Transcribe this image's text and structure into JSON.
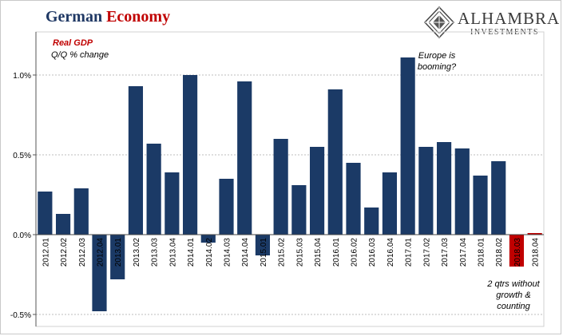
{
  "header": {
    "title_part1": "German",
    "title_part2": "Economy"
  },
  "logo": {
    "name": "ALHAMBRA",
    "sub": "INVESTMENTS"
  },
  "annotations": {
    "series_label": "Real GDP",
    "series_unit": "Q/Q % change",
    "europe_line1": "Europe is",
    "europe_line2": "booming?",
    "qtrs_line1": "2 qtrs without",
    "qtrs_line2": "growth &",
    "qtrs_line3": "counting"
  },
  "colors": {
    "bar": "#1b3a66",
    "highlight": "#c00000",
    "grid": "#bdbdbd"
  },
  "chart_data": {
    "type": "bar",
    "title": "German Economy",
    "xlabel": "",
    "ylabel": "",
    "ylim": [
      -0.5,
      1.2
    ],
    "yticks": [
      {
        "value": -0.5,
        "label": "-0.5%"
      },
      {
        "value": 0.0,
        "label": "0.0%"
      },
      {
        "value": 0.5,
        "label": "0.5%"
      },
      {
        "value": 1.0,
        "label": "1.0%"
      }
    ],
    "grid": true,
    "categories": [
      "2012.01",
      "2012.02",
      "2012.03",
      "2012.04",
      "2013.01",
      "2013.02",
      "2013.03",
      "2013.04",
      "2014.01",
      "2014.02",
      "2014.03",
      "2014.04",
      "2015.01",
      "2015.02",
      "2015.03",
      "2015.04",
      "2016.01",
      "2016.02",
      "2016.03",
      "2016.04",
      "2017.01",
      "2017.02",
      "2017.03",
      "2017.04",
      "2018.01",
      "2018.02",
      "2018.03",
      "2018.04"
    ],
    "series": [
      {
        "values": [
          0.27,
          0.13,
          0.29,
          -0.48,
          -0.28,
          0.93,
          0.57,
          0.39,
          1.0,
          -0.05,
          0.35,
          0.96,
          -0.13,
          0.6,
          0.31,
          0.55,
          0.91,
          0.45,
          0.17,
          0.39,
          1.11,
          0.55,
          0.58,
          0.54,
          0.37,
          0.46,
          -0.2,
          0.01
        ]
      }
    ],
    "highlight_categories": [
      "2018.03",
      "2018.04"
    ]
  }
}
